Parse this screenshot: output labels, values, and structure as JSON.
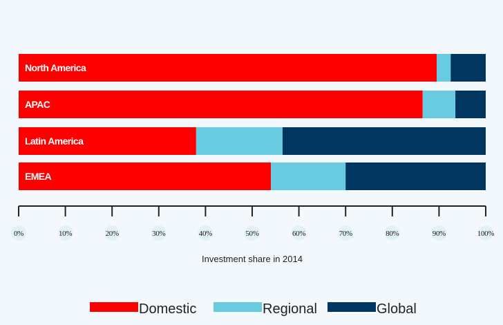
{
  "chart_data": {
    "type": "bar",
    "orientation": "horizontal",
    "stacked": true,
    "categories": [
      "North America",
      "APAC",
      "Latin America",
      "EMEA"
    ],
    "series": [
      {
        "name": "Domestic",
        "color": "#ff0000",
        "values": [
          89.5,
          86.5,
          38,
          54
        ]
      },
      {
        "name": "Regional",
        "color": "#68cbe0",
        "values": [
          3,
          7,
          18.5,
          16
        ]
      },
      {
        "name": "Global",
        "color": "#003660",
        "values": [
          7.5,
          6.5,
          43.5,
          30
        ]
      }
    ],
    "xlabel": "Investment share in 2014",
    "ylabel": "",
    "xlim": [
      0,
      100
    ],
    "xticks": [
      "0%",
      "10%",
      "20%",
      "30%",
      "40%",
      "50%",
      "60%",
      "70%",
      "80%",
      "90%",
      "100%"
    ],
    "grid": false,
    "legend": "bottom"
  }
}
